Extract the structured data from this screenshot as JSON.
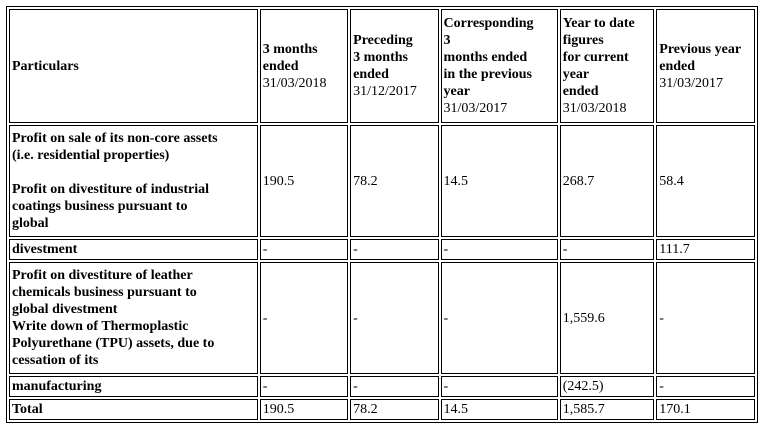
{
  "table": {
    "header": {
      "particulars": "Particulars",
      "col1_bold": "3 months\nended",
      "col1_date": "31/03/2018",
      "col2_bold": "Preceding\n3 months\nended",
      "col2_date": "31/12/2017",
      "col3_bold": "Corresponding\n3\nmonths ended\nin the previous\nyear",
      "col3_date": "31/03/2017",
      "col4_bold": "Year to date\nfigures\nfor current\nyear\nended",
      "col4_date": "31/03/2018",
      "col5_bold": "Previous year\nended",
      "col5_date": "31/03/2017"
    },
    "rows": [
      {
        "label": "Profit on sale of its non-core assets\n(i.e. residential properties)\n\nProfit on divestiture of industrial\ncoatings business pursuant to\nglobal",
        "values": [
          "190.5",
          "78.2",
          "14.5",
          "268.7",
          "58.4"
        ]
      },
      {
        "label": "divestment",
        "values": [
          "-",
          "-",
          "-",
          "-",
          "111.7"
        ]
      },
      {
        "label": "Profit on divestiture of leather\nchemicals business pursuant to\nglobal divestment\nWrite down of Thermoplastic\nPolyurethane (TPU) assets, due to\ncessation of its",
        "values": [
          "-",
          "-",
          "-",
          "1,559.6",
          "-"
        ]
      },
      {
        "label": "manufacturing",
        "values": [
          "-",
          "-",
          "-",
          "(242.5)",
          "-"
        ]
      },
      {
        "label": "Total",
        "values": [
          "190.5",
          "78.2",
          "14.5",
          "1,585.7",
          "170.1"
        ]
      }
    ]
  }
}
